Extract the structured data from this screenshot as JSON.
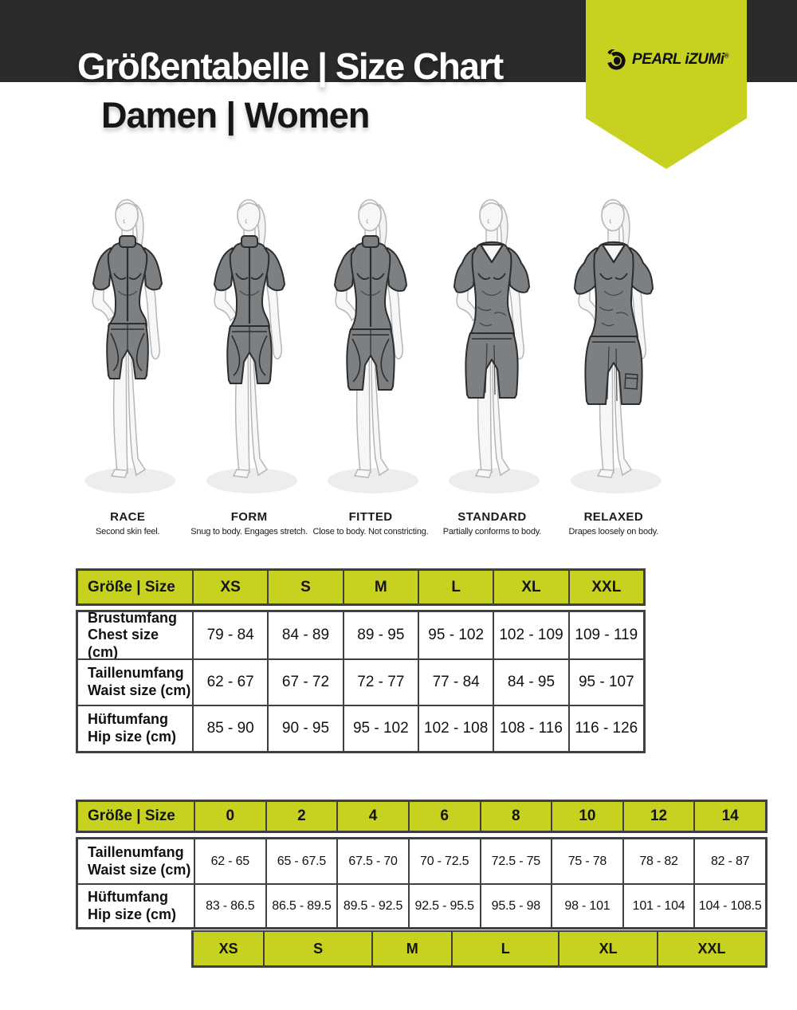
{
  "header": {
    "title": "Größentabelle | Size Chart",
    "subtitle": "Damen | Women",
    "brand": {
      "name": "PEARL iZUMi",
      "registered_mark": "®",
      "emblem_icon": "pearl-izumi-emblem-icon"
    }
  },
  "fits": [
    {
      "name": "RACE",
      "description": "Second skin feel.",
      "icon": "race-fit-figure"
    },
    {
      "name": "FORM",
      "description": "Snug to body. Engages stretch.",
      "icon": "form-fit-figure"
    },
    {
      "name": "FITTED",
      "description": "Close to body. Not constricting.",
      "icon": "fitted-fit-figure"
    },
    {
      "name": "STANDARD",
      "description": "Partially conforms to body.",
      "icon": "standard-fit-figure"
    },
    {
      "name": "RELAXED",
      "description": "Drapes loosely on body.",
      "icon": "relaxed-fit-figure"
    }
  ],
  "letter_size_table": {
    "header_label": "Größe | Size",
    "columns": [
      "XS",
      "S",
      "M",
      "L",
      "XL",
      "XXL"
    ],
    "rows": [
      {
        "label_de": "Brustumfang",
        "label_en": "Chest size (cm)",
        "values": [
          "79 - 84",
          "84 - 89",
          "89 - 95",
          "95 - 102",
          "102 - 109",
          "109 - 119"
        ]
      },
      {
        "label_de": "Taillenumfang",
        "label_en": "Waist size (cm)",
        "values": [
          "62 - 67",
          "67 - 72",
          "72 - 77",
          "77 - 84",
          "84 - 95",
          "95 - 107"
        ]
      },
      {
        "label_de": "Hüftumfang",
        "label_en": "Hip size (cm)",
        "values": [
          "85 - 90",
          "90 - 95",
          "95 - 102",
          "102 - 108",
          "108 - 116",
          "116 - 126"
        ]
      }
    ]
  },
  "numeric_size_table": {
    "header_label": "Größe | Size",
    "columns": [
      "0",
      "2",
      "4",
      "6",
      "8",
      "10",
      "12",
      "14"
    ],
    "rows": [
      {
        "label_de": "Taillenumfang",
        "label_en": "Waist size (cm)",
        "values": [
          "62 - 65",
          "65 - 67.5",
          "67.5 - 70",
          "70 - 72.5",
          "72.5 - 75",
          "75 - 78",
          "78 - 82",
          "82 - 87"
        ]
      },
      {
        "label_de": "Hüftumfang",
        "label_en": "Hip size (cm)",
        "values": [
          "83 - 86.5",
          "86.5 - 89.5",
          "89.5 - 92.5",
          "92.5 - 95.5",
          "95.5 - 98",
          "98 - 101",
          "101 - 104",
          "104 - 108.5"
        ]
      }
    ],
    "letter_row": [
      "XS",
      "S",
      "M",
      "L",
      "XL",
      "XXL"
    ]
  },
  "colors": {
    "brand_lime": "#c6d21f",
    "header_bar": "#2b2b2b",
    "table_border": "#404040",
    "garment_gray": "#7d8082",
    "text": "#111111"
  }
}
